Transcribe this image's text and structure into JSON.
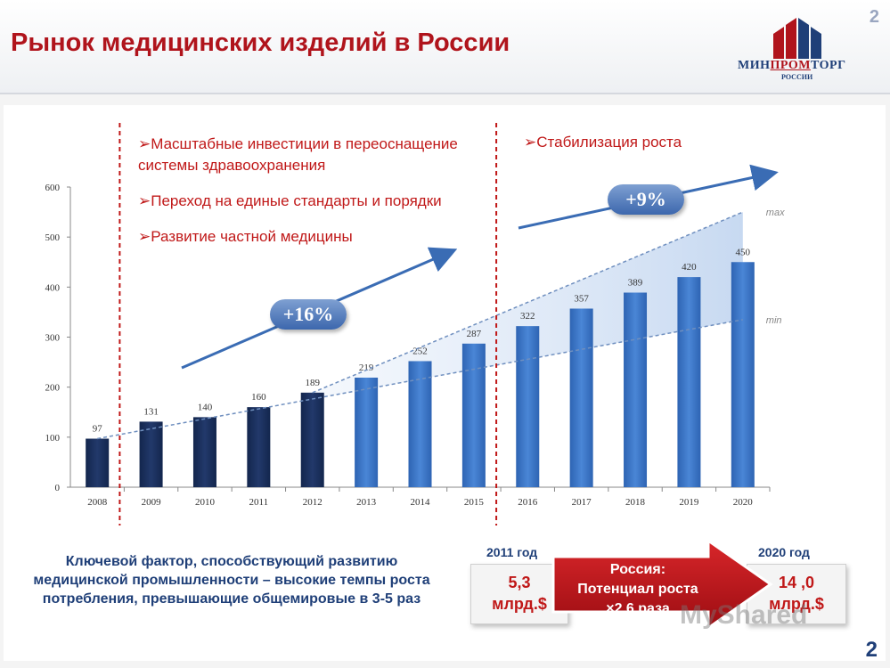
{
  "slide": {
    "title": "Рынок медицинских изделий в России",
    "page_number": "2",
    "logo_text_pre": "МИН",
    "logo_text_mid": "ПРОМ",
    "logo_text_post": "ТОРГ",
    "logo_sub": "РОССИИ"
  },
  "notes": {
    "left_bullets": [
      "➢Масштабные инвестиции в переоснащение системы здравоохранения",
      "➢Переход на единые стандарты и порядки",
      "➢Развитие частной медицины"
    ],
    "right_bullet": "➢Стабилизация роста",
    "growth_left": "+16%",
    "growth_right": "+9%"
  },
  "bottom": {
    "key_factor": "Ключевой фактор, способствующий развитию медицинской промышленности – высокие темпы роста потребления, превышающие общемировые в 3-5 раз",
    "year_left": "2011 год",
    "value_left_1": "5,3",
    "value_left_2": "млрд.$",
    "year_right": "2020 год",
    "value_right_1": "14 ,0",
    "value_right_2": "млрд.$",
    "arrow_line1": "Россия:",
    "arrow_line2": "Потенциал роста",
    "arrow_line3": "×2,6 раза",
    "watermark": "MyShared"
  },
  "colors": {
    "title": "#b0141c",
    "bar_dark": "#1a2f5c",
    "bar_light": "#3d78c7",
    "accent_red": "#c01818",
    "badge_blue": "#3c67ad"
  },
  "chart_data": {
    "type": "bar",
    "categories": [
      "2008",
      "2009",
      "2010",
      "2011",
      "2012",
      "2013",
      "2014",
      "2015",
      "2016",
      "2017",
      "2018",
      "2019",
      "2020"
    ],
    "values": [
      97,
      131,
      140,
      160,
      189,
      219,
      252,
      287,
      322,
      357,
      389,
      420,
      450
    ],
    "value_labels": [
      "97",
      "131",
      "140",
      "160",
      "189",
      "219",
      "252",
      "287",
      "322",
      "357",
      "389",
      "420",
      "450"
    ],
    "dark_bar_count": 5,
    "ylim": [
      0,
      600
    ],
    "yticks": [
      "0",
      "100",
      "200",
      "300",
      "400",
      "500",
      "600"
    ],
    "range_labels": {
      "max": "max",
      "min": "min"
    },
    "max_line": [
      [
        2012,
        189
      ],
      [
        2020,
        550
      ]
    ],
    "min_line": [
      [
        2008,
        97
      ],
      [
        2020,
        335
      ]
    ],
    "title": "",
    "xlabel": "",
    "ylabel": ""
  }
}
